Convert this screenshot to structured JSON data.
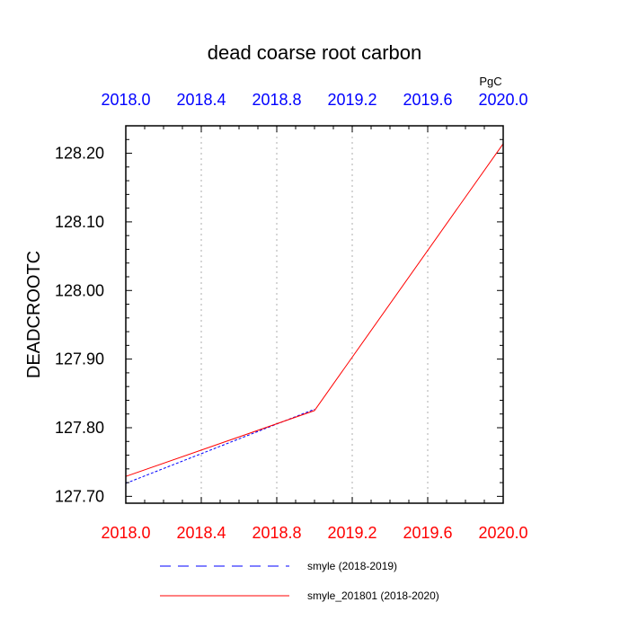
{
  "chart_data": {
    "type": "line",
    "title": "dead coarse root carbon",
    "ylabel": "DEADCROOTC",
    "units": "PgC",
    "xlim": [
      2018.0,
      2020.0
    ],
    "ylim": [
      127.69,
      128.24
    ],
    "x_ticks": [
      2018.0,
      2018.4,
      2018.8,
      2019.2,
      2019.6,
      2020.0
    ],
    "x_tick_labels_bottom": [
      "2018.0",
      "2018.4",
      "2018.8",
      "2019.2",
      "2019.6",
      "2020.0"
    ],
    "x_tick_labels_top": [
      "2018.0",
      "2018.4",
      "2018.8",
      "2019.2",
      "2019.6",
      "2020.0"
    ],
    "y_ticks": [
      127.7,
      127.8,
      127.9,
      128.0,
      128.1,
      128.2
    ],
    "y_tick_labels": [
      "127.70",
      "127.80",
      "127.90",
      "128.00",
      "128.10",
      "128.20"
    ],
    "grid": "vertical dotted",
    "series": [
      {
        "name": "smyle (2018-2019)",
        "color": "#0000ff",
        "style": "dashed",
        "x": [
          2018.0,
          2019.0
        ],
        "values": [
          127.719,
          127.827
        ]
      },
      {
        "name": "smyle_201801 (2018-2020)",
        "color": "#ff0000",
        "style": "solid",
        "x": [
          2018.0,
          2019.0,
          2020.0
        ],
        "values": [
          127.729,
          127.825,
          128.214
        ]
      }
    ],
    "colors": {
      "top_axis": "#0000ff",
      "bottom_axis": "#ff0000",
      "grid": "#c8c8c8",
      "frame": "#000000"
    }
  }
}
